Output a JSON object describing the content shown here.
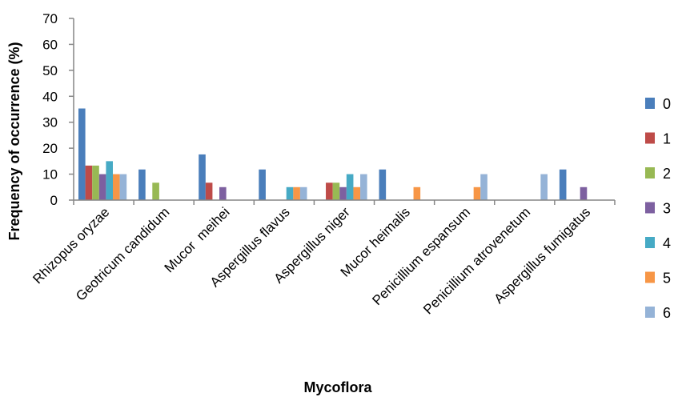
{
  "chart_data": {
    "type": "bar",
    "title": "",
    "xlabel": "Mycoflora",
    "ylabel": "Frequency of occurrence (%)",
    "ylim": [
      0,
      70
    ],
    "yticks": [
      0,
      10,
      20,
      30,
      40,
      50,
      60,
      70
    ],
    "grid": false,
    "legend_position": "right",
    "categories": [
      "Rhizopus oryzae",
      "Geotricum candidum",
      "Mucor  meihei",
      "Aspergillus flavus",
      "Aspergillus niger",
      "Mucor heimalis",
      "Penicillium espansum",
      "Penicillium atrovenetum",
      "Aspergillus fumigatus"
    ],
    "series": [
      {
        "name": "0",
        "color": "#4a7ebb",
        "values": [
          35.3,
          11.8,
          17.6,
          11.8,
          0,
          11.8,
          0,
          0,
          11.8
        ]
      },
      {
        "name": "1",
        "color": "#be4b48",
        "values": [
          13.3,
          0,
          6.7,
          0,
          6.7,
          0,
          0,
          0,
          0
        ]
      },
      {
        "name": "2",
        "color": "#98b954",
        "values": [
          13.3,
          6.7,
          0,
          0,
          6.7,
          0,
          0,
          0,
          0
        ]
      },
      {
        "name": "3",
        "color": "#7d60a0",
        "values": [
          10,
          0,
          5,
          0,
          5,
          0,
          0,
          0,
          5
        ]
      },
      {
        "name": "4",
        "color": "#46aac5",
        "values": [
          15,
          0,
          0,
          5,
          10,
          0,
          0,
          0,
          0
        ]
      },
      {
        "name": "5",
        "color": "#f79646",
        "values": [
          10,
          0,
          0,
          5,
          5,
          5,
          5,
          0,
          0
        ]
      },
      {
        "name": "6",
        "color": "#95b3d7",
        "values": [
          10,
          0,
          0,
          5,
          10,
          0,
          10,
          10,
          0
        ]
      }
    ]
  }
}
